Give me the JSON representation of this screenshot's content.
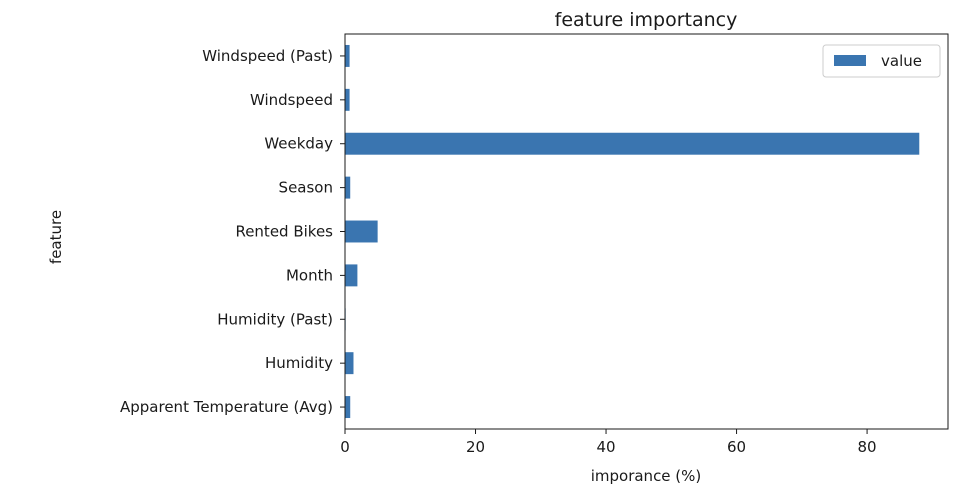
{
  "chart_data": {
    "type": "bar",
    "orientation": "horizontal",
    "title": "feature importancy",
    "xlabel": "imporance (%)",
    "ylabel": "feature",
    "categories": [
      "Apparent Temperature (Avg)",
      "Humidity",
      "Humidity (Past)",
      "Month",
      "Rented Bikes",
      "Season",
      "Weekday",
      "Windspeed",
      "Windspeed (Past)"
    ],
    "series": [
      {
        "name": "value",
        "color": "#3a75b0",
        "values": [
          0.8,
          1.3,
          0.1,
          1.9,
          5.0,
          0.8,
          88.0,
          0.7,
          0.7
        ]
      }
    ],
    "xlim": [
      0,
      92.4
    ],
    "xticks": [
      0,
      20,
      40,
      60,
      80
    ],
    "grid": false,
    "legend": {
      "position": "top-right"
    }
  }
}
